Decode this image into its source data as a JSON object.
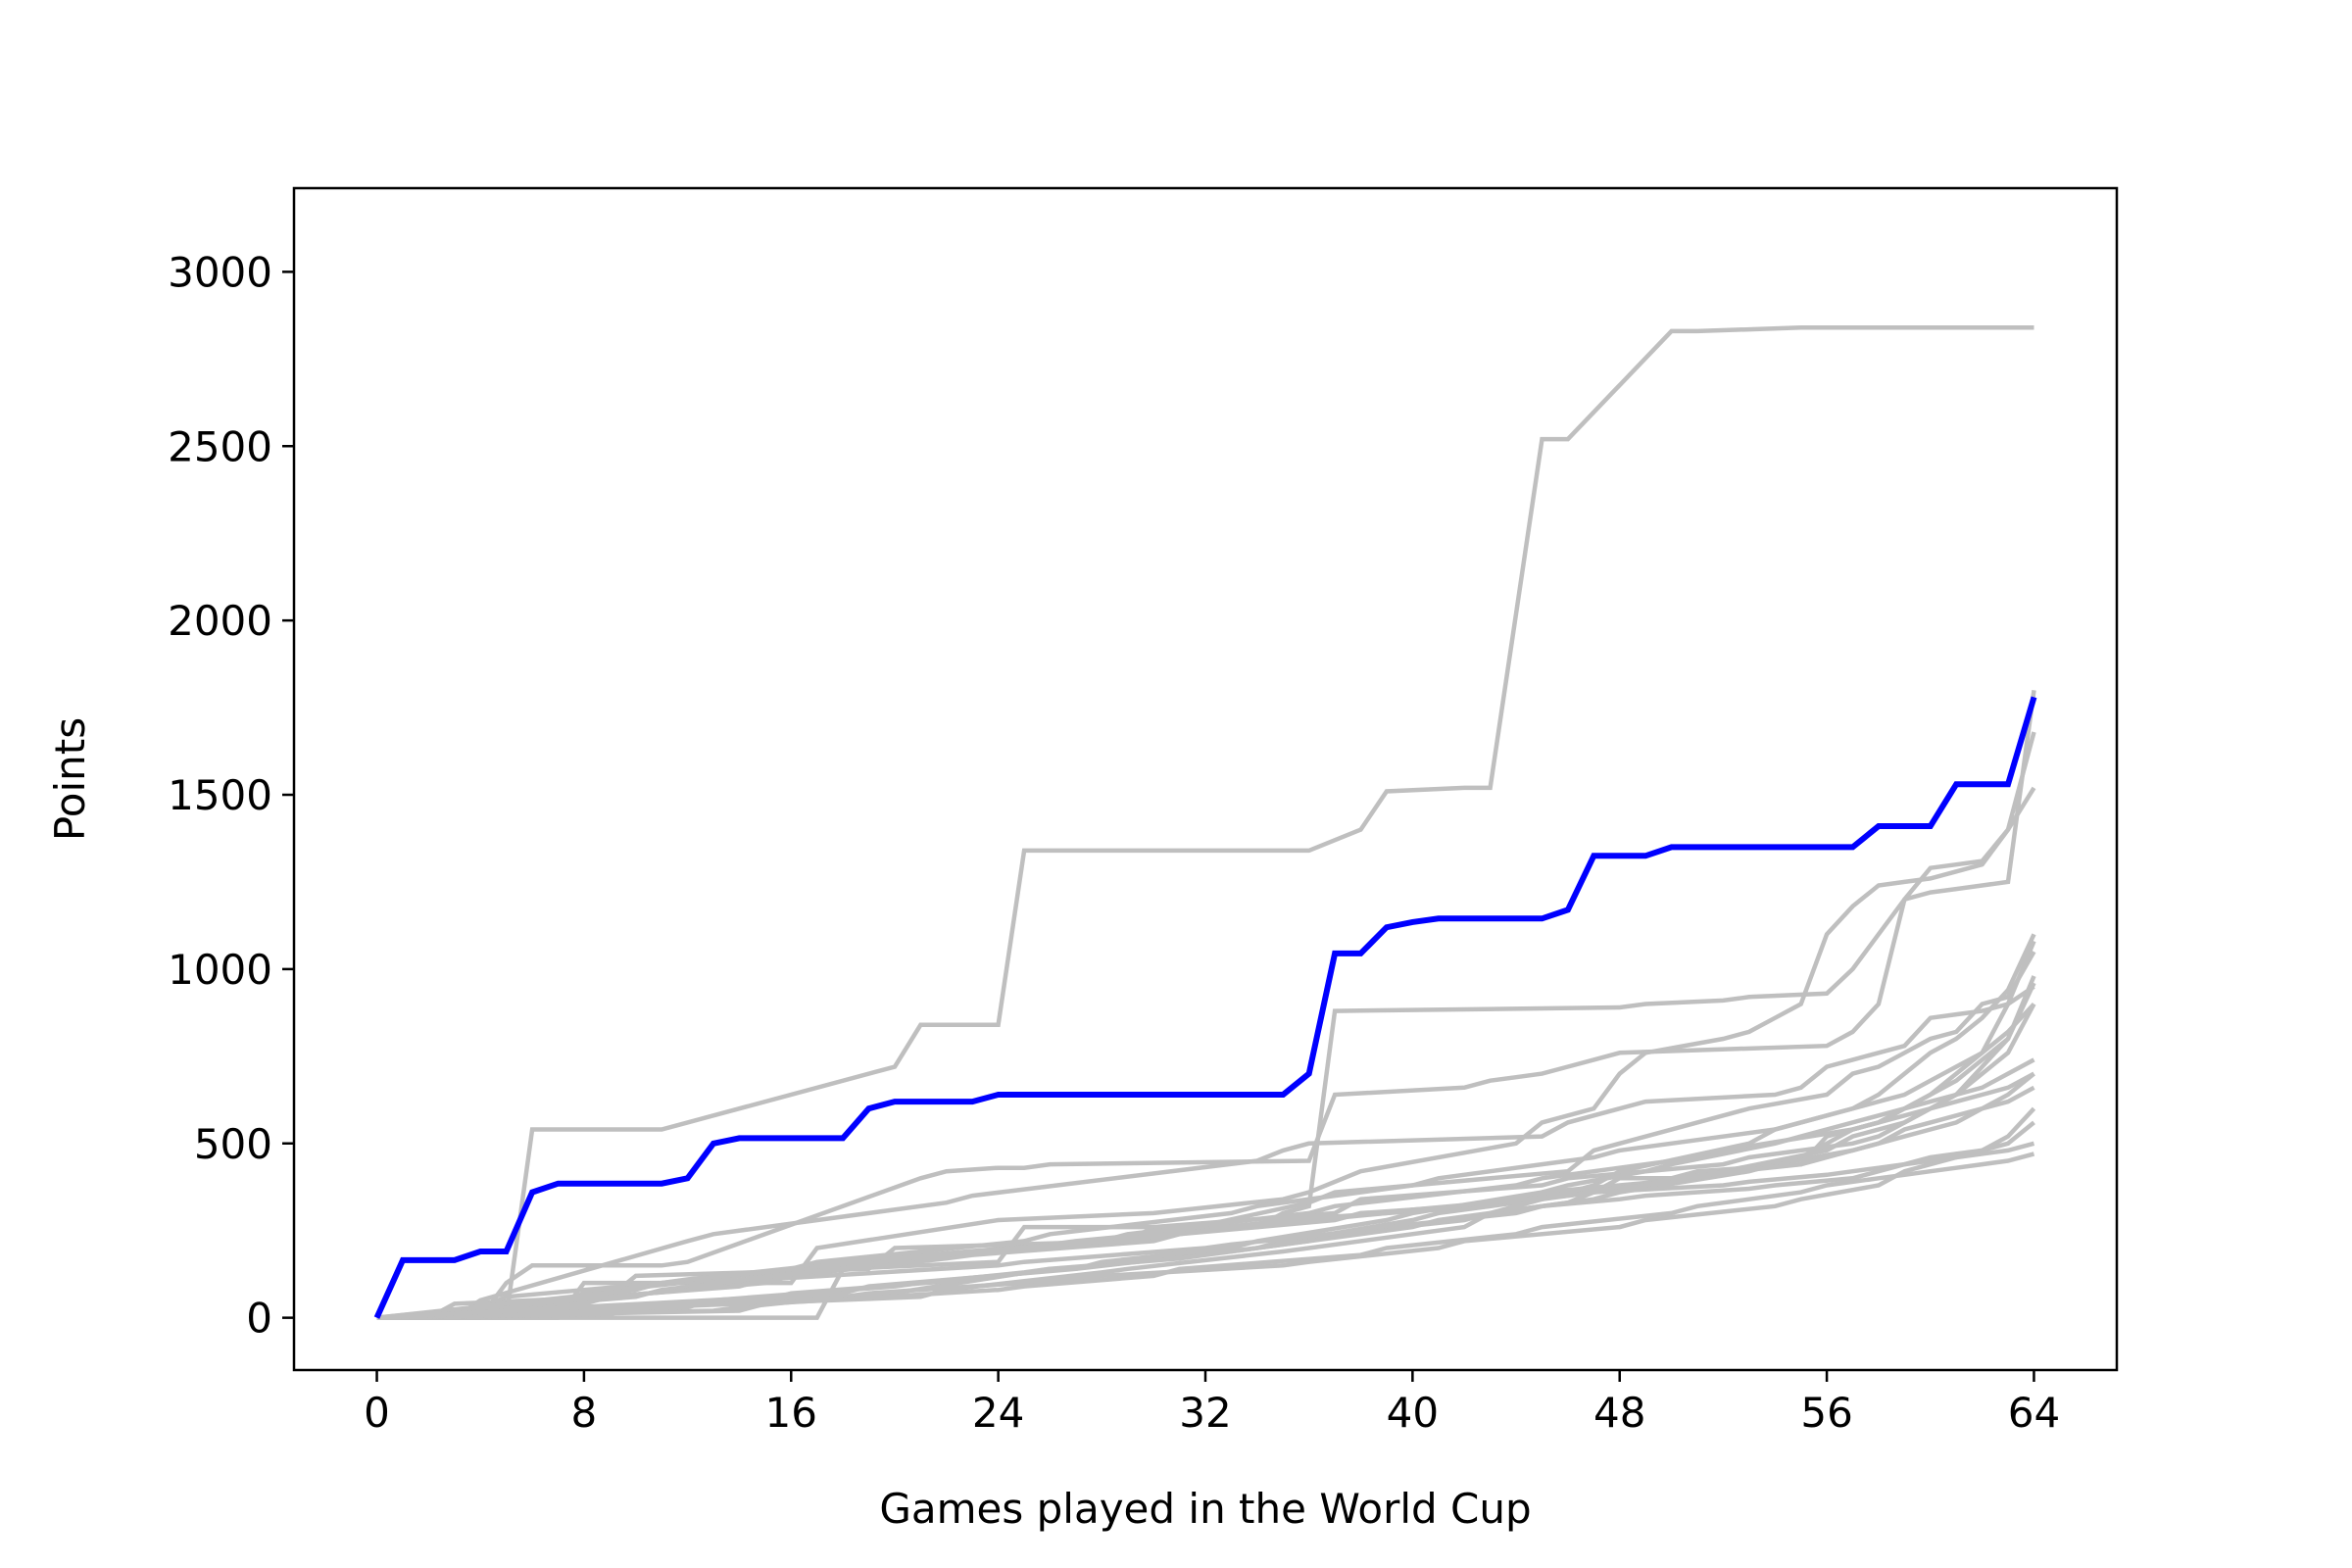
{
  "chart_data": {
    "type": "line",
    "title": "",
    "xlabel": "Games played in the World Cup",
    "ylabel": "Points",
    "xlim": [
      -3.2,
      67.2
    ],
    "ylim": [
      -150,
      3240
    ],
    "xticks": [
      0,
      8,
      16,
      24,
      32,
      40,
      48,
      56,
      64
    ],
    "yticks": [
      0,
      500,
      1000,
      1500,
      2000,
      2500,
      3000
    ],
    "grid": false,
    "legend": "none",
    "colors": {
      "highlight": "#0000ff",
      "background_series": "#bfbfbf"
    },
    "highlight_series": {
      "x": [
        0,
        1,
        2,
        3,
        4,
        5,
        6,
        7,
        8,
        9,
        10,
        11,
        12,
        13,
        14,
        15,
        16,
        17,
        18,
        19,
        20,
        21,
        22,
        23,
        24,
        25,
        26,
        27,
        28,
        29,
        30,
        31,
        32,
        33,
        34,
        35,
        36,
        37,
        38,
        39,
        40,
        41,
        42,
        43,
        44,
        45,
        46,
        47,
        48,
        49,
        50,
        51,
        52,
        53,
        54,
        55,
        56,
        57,
        58,
        59,
        60,
        61,
        62,
        63,
        64
      ],
      "y": [
        0,
        165,
        165,
        165,
        190,
        190,
        360,
        385,
        385,
        385,
        385,
        385,
        400,
        500,
        515,
        515,
        515,
        515,
        515,
        600,
        620,
        620,
        620,
        620,
        640,
        640,
        640,
        640,
        640,
        640,
        640,
        640,
        640,
        640,
        640,
        640,
        700,
        1045,
        1045,
        1120,
        1135,
        1145,
        1145,
        1145,
        1145,
        1145,
        1170,
        1325,
        1325,
        1325,
        1350,
        1350,
        1350,
        1350,
        1350,
        1350,
        1350,
        1350,
        1410,
        1410,
        1410,
        1530,
        1530,
        1530,
        1780
      ]
    },
    "background_series": [
      {
        "x": [
          0,
          4,
          5,
          6,
          11,
          12,
          21,
          22,
          24,
          25,
          26,
          36,
          37,
          42,
          43,
          44,
          45,
          46,
          47,
          48,
          56,
          57,
          58,
          59,
          60,
          61,
          62,
          63,
          64
        ],
        "y": [
          0,
          0,
          100,
          150,
          150,
          160,
          400,
          420,
          430,
          430,
          440,
          450,
          640,
          660,
          680,
          690,
          700,
          720,
          740,
          760,
          780,
          820,
          900,
          1200,
          1290,
          1300,
          1310,
          1400,
          1520
        ]
      },
      {
        "x": [
          0,
          5,
          6,
          11,
          12,
          20,
          21,
          24,
          25,
          35,
          36,
          38,
          39,
          42,
          43,
          45,
          46,
          50,
          51,
          55,
          56,
          57,
          58,
          59,
          60,
          63,
          64
        ],
        "y": [
          0,
          0,
          540,
          540,
          560,
          720,
          840,
          840,
          1340,
          1340,
          1340,
          1400,
          1510,
          1520,
          1520,
          2520,
          2520,
          2830,
          2830,
          2840,
          2840,
          2840,
          2840,
          2840,
          2840,
          2840,
          2840
        ]
      },
      {
        "x": [
          0,
          7,
          8,
          16,
          17,
          24,
          30,
          35,
          36,
          38,
          44,
          45,
          46,
          47,
          48,
          49,
          52,
          53,
          54,
          55,
          56,
          57,
          58,
          59,
          60,
          61,
          62,
          63,
          64
        ],
        "y": [
          0,
          0,
          100,
          100,
          200,
          280,
          300,
          340,
          360,
          420,
          500,
          560,
          580,
          600,
          700,
          760,
          800,
          820,
          860,
          900,
          1100,
          1180,
          1240,
          1250,
          1260,
          1280,
          1300,
          1400,
          1680
        ]
      },
      {
        "x": [
          0,
          13,
          14,
          18,
          19,
          26,
          27,
          34,
          35,
          36,
          40,
          41,
          47,
          48,
          50,
          51,
          55,
          56,
          57,
          58,
          59,
          60,
          61,
          62,
          63,
          64
        ],
        "y": [
          0,
          20,
          30,
          60,
          60,
          140,
          140,
          200,
          220,
          230,
          280,
          300,
          360,
          400,
          400,
          420,
          440,
          520,
          540,
          560,
          600,
          640,
          700,
          760,
          900,
          1080
        ]
      },
      {
        "x": [
          0,
          10,
          11,
          20,
          21,
          30,
          31,
          36,
          37,
          46,
          47,
          48,
          52,
          53,
          56,
          57,
          58,
          59,
          60,
          61,
          62,
          63,
          64
        ],
        "y": [
          0,
          60,
          80,
          160,
          170,
          230,
          250,
          330,
          360,
          420,
          480,
          500,
          580,
          600,
          640,
          700,
          720,
          760,
          800,
          820,
          900,
          920,
          1050
        ]
      },
      {
        "x": [
          0,
          3,
          4,
          12,
          13,
          22,
          23,
          34,
          35,
          36,
          45,
          46,
          48,
          49,
          54,
          55,
          56,
          57,
          58,
          59,
          60,
          61,
          62,
          63,
          64
        ],
        "y": [
          0,
          0,
          50,
          220,
          240,
          330,
          350,
          450,
          480,
          500,
          520,
          560,
          600,
          620,
          640,
          660,
          720,
          740,
          760,
          780,
          860,
          870,
          880,
          900,
          950
        ]
      },
      {
        "x": [
          0,
          17,
          18,
          24,
          25,
          34,
          35,
          36,
          37,
          48,
          49,
          52,
          53,
          56,
          57,
          58,
          59,
          60,
          61,
          62,
          63,
          64
        ],
        "y": [
          0,
          0,
          140,
          160,
          260,
          260,
          300,
          320,
          880,
          890,
          900,
          910,
          920,
          930,
          1000,
          1100,
          1200,
          1220,
          1230,
          1240,
          1250,
          1800
        ]
      },
      {
        "x": [
          0,
          8,
          9,
          15,
          16,
          22,
          23,
          30,
          31,
          37,
          38,
          44,
          45,
          51,
          52,
          55,
          56,
          57,
          58,
          59,
          60,
          61,
          62,
          63,
          64
        ],
        "y": [
          0,
          40,
          60,
          100,
          120,
          170,
          180,
          220,
          240,
          280,
          300,
          330,
          360,
          400,
          420,
          460,
          500,
          540,
          560,
          600,
          620,
          640,
          660,
          700,
          740
        ]
      },
      {
        "x": [
          0,
          12,
          13,
          20,
          21,
          25,
          26,
          31,
          32,
          36,
          37,
          42,
          43,
          47,
          48,
          53,
          54,
          57,
          58,
          59,
          60,
          62,
          63,
          64
        ],
        "y": [
          0,
          30,
          50,
          90,
          100,
          130,
          140,
          170,
          180,
          220,
          240,
          280,
          300,
          340,
          360,
          420,
          440,
          480,
          500,
          540,
          560,
          600,
          640,
          700
        ]
      },
      {
        "x": [
          0,
          6,
          7,
          14,
          15,
          24,
          25,
          32,
          33,
          38,
          39,
          44,
          45,
          48,
          49,
          53,
          54,
          57,
          58,
          59,
          60,
          61,
          62,
          63,
          64
        ],
        "y": [
          0,
          20,
          50,
          90,
          110,
          150,
          160,
          200,
          210,
          250,
          260,
          300,
          320,
          340,
          350,
          370,
          380,
          400,
          420,
          440,
          460,
          470,
          480,
          500,
          560
        ]
      },
      {
        "x": [
          0,
          9,
          10,
          18,
          19,
          27,
          28,
          35,
          36,
          41,
          42,
          48,
          49,
          54,
          55,
          58,
          59,
          60,
          61,
          62,
          63,
          64
        ],
        "y": [
          0,
          10,
          30,
          60,
          70,
          110,
          120,
          150,
          160,
          200,
          220,
          260,
          280,
          320,
          340,
          380,
          420,
          440,
          460,
          480,
          520,
          600
        ]
      },
      {
        "x": [
          0,
          2,
          3,
          9,
          10,
          19,
          20,
          29,
          30,
          37,
          38,
          45,
          46,
          52,
          53,
          57,
          58,
          59,
          60,
          61,
          62,
          63,
          64
        ],
        "y": [
          0,
          0,
          40,
          60,
          120,
          140,
          200,
          220,
          260,
          300,
          340,
          380,
          400,
          440,
          460,
          500,
          520,
          560,
          600,
          640,
          700,
          760,
          900
        ]
      },
      {
        "x": [
          0,
          15,
          16,
          23,
          24,
          33,
          34,
          40,
          41,
          46,
          47,
          51,
          52,
          56,
          57,
          59,
          60,
          61,
          62,
          63,
          64
        ],
        "y": [
          0,
          50,
          70,
          110,
          120,
          190,
          200,
          260,
          280,
          330,
          360,
          400,
          420,
          480,
          520,
          560,
          600,
          640,
          720,
          800,
          980
        ]
      },
      {
        "x": [
          0,
          4,
          5,
          11,
          12,
          17,
          18,
          26,
          27,
          34,
          35,
          43,
          44,
          49,
          50,
          55,
          56,
          58,
          59,
          60,
          61,
          62,
          63,
          64
        ],
        "y": [
          0,
          30,
          60,
          100,
          110,
          150,
          160,
          210,
          220,
          270,
          280,
          320,
          340,
          380,
          400,
          440,
          460,
          500,
          520,
          540,
          560,
          600,
          620,
          660
        ]
      },
      {
        "x": [
          0,
          21,
          22,
          28,
          29,
          35,
          36,
          42,
          43,
          47,
          48,
          53,
          54,
          57,
          58,
          59,
          60,
          61,
          62,
          63,
          64
        ],
        "y": [
          0,
          60,
          80,
          130,
          140,
          190,
          200,
          260,
          300,
          380,
          420,
          500,
          540,
          600,
          640,
          700,
          760,
          800,
          860,
          940,
          1100
        ]
      },
      {
        "x": [
          0,
          7,
          8,
          13,
          14,
          22,
          23,
          31,
          32,
          39,
          40,
          46,
          47,
          52,
          53,
          56,
          57,
          58,
          59,
          60,
          61,
          62,
          63,
          64
        ],
        "y": [
          0,
          40,
          70,
          110,
          120,
          180,
          190,
          240,
          250,
          300,
          310,
          350,
          360,
          380,
          390,
          410,
          420,
          430,
          440,
          450,
          460,
          470,
          480,
          500
        ]
      },
      {
        "x": [
          0,
          10,
          11,
          16,
          17,
          25,
          26,
          33,
          34,
          40,
          41,
          47,
          48,
          54,
          55,
          58,
          59,
          60,
          61,
          62,
          63,
          64
        ],
        "y": [
          0,
          80,
          100,
          140,
          160,
          220,
          240,
          300,
          320,
          380,
          400,
          460,
          480,
          540,
          560,
          620,
          640,
          680,
          720,
          760,
          820,
          900
        ]
      },
      {
        "x": [
          0,
          14,
          15,
          24,
          25,
          30,
          31,
          38,
          39,
          44,
          45,
          50,
          51,
          55,
          56,
          58,
          59,
          60,
          61,
          62,
          63,
          64
        ],
        "y": [
          0,
          20,
          40,
          80,
          90,
          120,
          140,
          180,
          200,
          240,
          260,
          300,
          320,
          360,
          380,
          400,
          410,
          420,
          430,
          440,
          450,
          470
        ]
      },
      {
        "x": [
          0,
          5,
          6,
          12,
          13,
          19,
          20,
          28,
          29,
          36,
          37,
          44,
          45,
          51,
          52,
          57,
          58,
          59,
          60,
          61,
          62,
          63,
          64
        ],
        "y": [
          0,
          20,
          40,
          80,
          100,
          150,
          170,
          220,
          240,
          300,
          320,
          380,
          400,
          460,
          480,
          540,
          560,
          580,
          600,
          620,
          640,
          660,
          700
        ]
      },
      {
        "x": [
          0,
          18,
          19,
          27,
          28,
          33,
          34,
          39,
          40,
          45,
          46,
          49,
          50,
          54,
          55,
          58,
          59,
          60,
          61,
          62,
          63,
          64
        ],
        "y": [
          0,
          70,
          90,
          140,
          160,
          200,
          220,
          280,
          300,
          360,
          380,
          420,
          440,
          500,
          520,
          580,
          600,
          640,
          680,
          740,
          800,
          960
        ]
      }
    ]
  }
}
